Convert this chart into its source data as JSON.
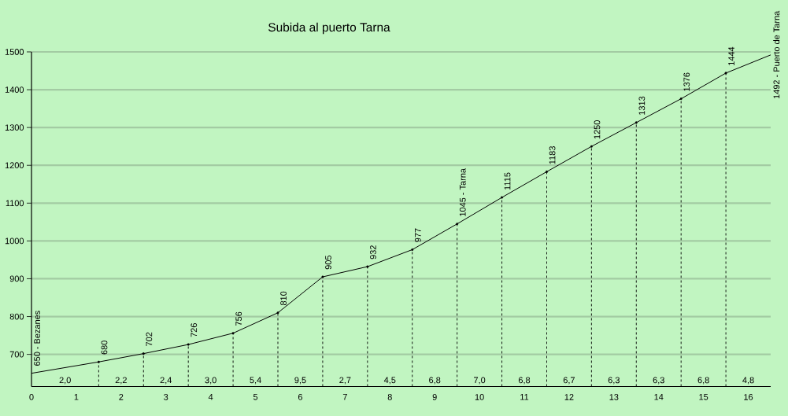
{
  "chart_data": {
    "type": "line",
    "title": "Subida al puerto Tarna",
    "x": [
      0,
      1.5,
      2.5,
      3.5,
      4.5,
      5.5,
      6.5,
      7.5,
      8.5,
      9.5,
      10.5,
      11.5,
      12.5,
      13.5,
      14.5,
      15.5,
      16.5
    ],
    "series": [
      {
        "color": "#000000",
        "line_style": "solid",
        "marker": "none",
        "values": [
          650,
          680,
          702,
          726,
          756,
          810,
          905,
          932,
          977,
          1045,
          1115,
          1183,
          1250,
          1313,
          1376,
          1444,
          1492
        ],
        "value_labels": [
          "650 - Bezanes",
          "680",
          "702",
          "726",
          "756",
          "810",
          "905",
          "932",
          "977",
          "1045 - Tarna",
          "1115",
          "1183",
          "1250",
          "1313",
          "1376",
          "1444",
          "1492 - Puerto de Tarna"
        ]
      },
      {
        "type": "lollipop",
        "color": "#000000",
        "line_style": "dashed",
        "marker": "circle",
        "x": [
          1.5,
          2.5,
          3.5,
          4.5,
          5.5,
          6.5,
          7.5,
          8.5,
          9.5,
          10.5,
          11.5,
          12.5,
          13.5,
          14.5,
          15.5
        ],
        "values": [
          680,
          702,
          726,
          756,
          810,
          905,
          932,
          977,
          1045,
          1115,
          1183,
          1250,
          1313,
          1376,
          1444
        ]
      }
    ],
    "xlim": [
      0,
      16.5
    ],
    "ylim": [
      615,
      1500
    ],
    "xticks": [
      0,
      1,
      2,
      3,
      4,
      5,
      6,
      7,
      8,
      9,
      10,
      11,
      12,
      13,
      14,
      15,
      16
    ],
    "yticks": [
      700,
      800,
      900,
      1000,
      1100,
      1200,
      1300,
      1400,
      1500
    ],
    "grid": "y",
    "annotations": [
      "2,0",
      "2,2",
      "2,4",
      "3,0",
      "5,4",
      "9,5",
      "2,7",
      "4,5",
      "6,8",
      "7,0",
      "6,8",
      "6,7",
      "6,3",
      "6,3",
      "6,8",
      "4,8"
    ]
  }
}
